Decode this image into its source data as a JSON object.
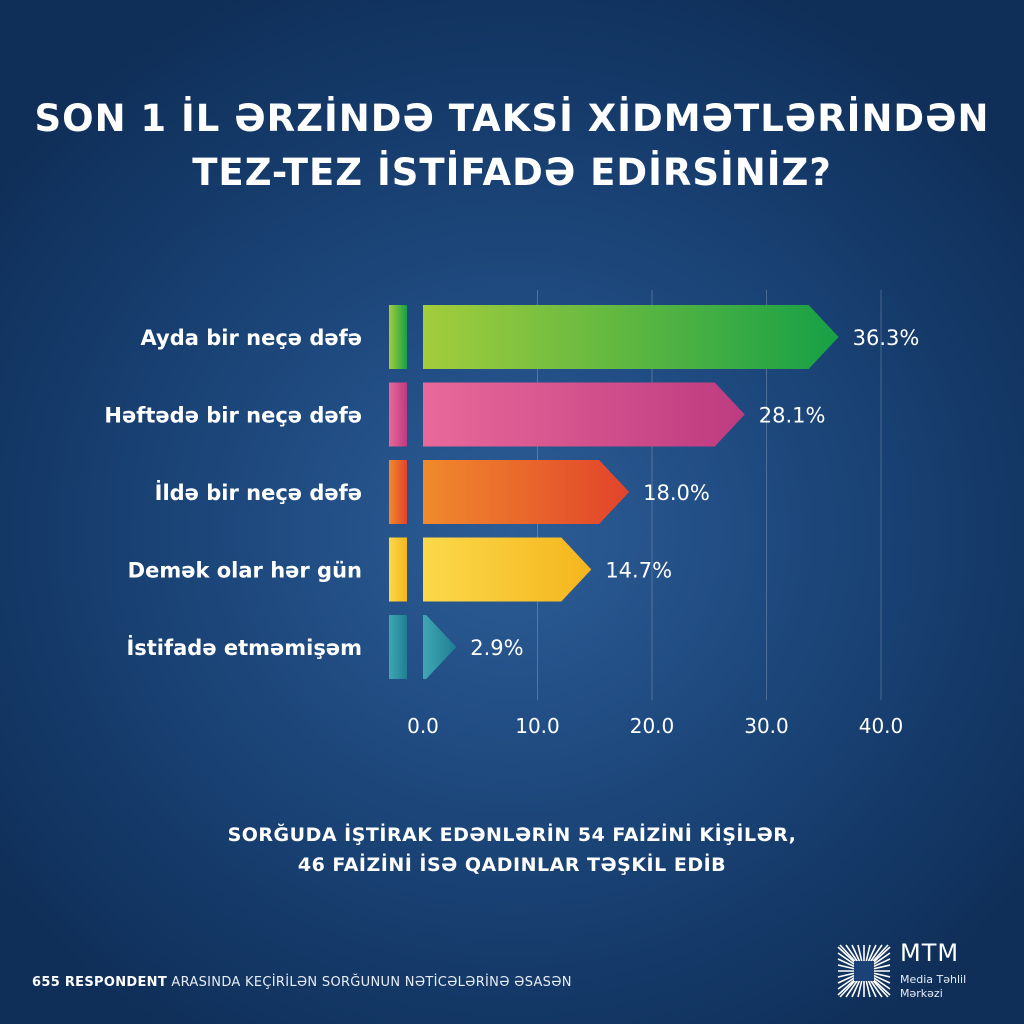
{
  "title_line1": "SON 1 İL ƏRZİNDƏ TAKSİ XİDMƏTLƏRİNDƏN",
  "title_line2": "TEZ-TEZ İSTİFADƏ EDİRSİNİZ?",
  "note_line1": "SORĞUDA İŞTİRAK EDƏNLƏRİN 54 FAİZİNİ KİŞİLƏR,",
  "note_line2": "46 FAİZİNİ İSƏ QADINLAR TƏŞKİL EDİB",
  "footer_bold": "655 RESPONDENT",
  "footer_rest": " ARASINDA KEÇİRİLƏN SORĞUNUN NƏTİCƏLƏRİNƏ ƏSASƏN",
  "logo": {
    "abbr": "MTM",
    "line1": "Media Təhlil",
    "line2": "Mərkəzi"
  },
  "colors": {
    "green": [
      "#a3cd3c",
      "#16a046"
    ],
    "pink": [
      "#e8699a",
      "#bd3b80"
    ],
    "orange": [
      "#f08a2c",
      "#e2432b"
    ],
    "yellow": [
      "#fbd94a",
      "#f5b51d"
    ],
    "teal": [
      "#3fa7b3",
      "#1f7e92"
    ]
  },
  "chart_data": {
    "type": "bar",
    "orientation": "horizontal",
    "categories": [
      "Ayda bir neçə dəfə",
      "Həftədə bir neçə dəfə",
      "İldə bir neçə dəfə",
      "Demək olar hər gün",
      "İstifadə etməmişəm"
    ],
    "values": [
      36.3,
      28.1,
      18.0,
      14.7,
      2.9
    ],
    "value_labels": [
      "36.3%",
      "28.1%",
      "18.0%",
      "14.7%",
      "2.9%"
    ],
    "bar_colors": [
      "green",
      "pink",
      "orange",
      "yellow",
      "teal"
    ],
    "xticks": [
      "0.0",
      "10.0",
      "20.0",
      "30.0",
      "40.0"
    ],
    "xlim": [
      0,
      40
    ],
    "grid": true
  }
}
